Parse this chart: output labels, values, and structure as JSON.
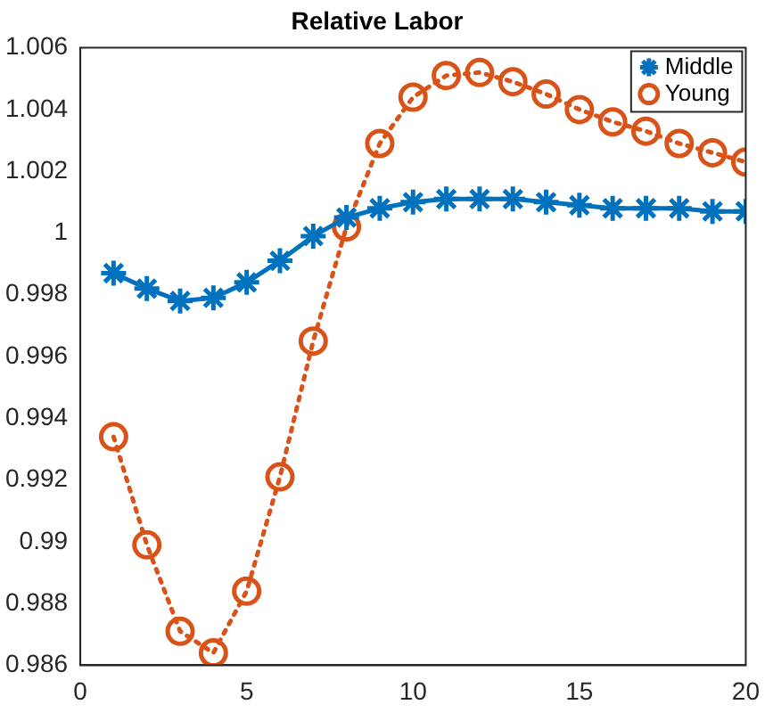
{
  "chart_data": {
    "type": "line",
    "title": "Relative Labor",
    "x": [
      1,
      2,
      3,
      4,
      5,
      6,
      7,
      8,
      9,
      10,
      11,
      12,
      13,
      14,
      15,
      16,
      17,
      18,
      19,
      20
    ],
    "series": [
      {
        "name": "Middle",
        "color": "#0072bd",
        "marker": "cross",
        "line_style": "solid",
        "values": [
          0.9987,
          0.9982,
          0.9978,
          0.9979,
          0.9984,
          0.9991,
          0.9999,
          1.0005,
          1.0008,
          1.001,
          1.0011,
          1.0011,
          1.0011,
          1.001,
          1.0009,
          1.0008,
          1.0008,
          1.0008,
          1.0007,
          1.0007
        ]
      },
      {
        "name": "Young",
        "color": "#d95319",
        "marker": "circle",
        "line_style": "dotted",
        "values": [
          0.9934,
          0.9899,
          0.9871,
          0.9864,
          0.9884,
          0.9921,
          0.9965,
          1.0002,
          1.0029,
          1.0044,
          1.0051,
          1.0052,
          1.0049,
          1.0045,
          1.004,
          1.0036,
          1.0033,
          1.0029,
          1.0026,
          1.0023
        ]
      }
    ],
    "xlim": [
      0,
      20
    ],
    "xticks": [
      0,
      5,
      10,
      15,
      20
    ],
    "ylim": [
      0.986,
      1.006
    ],
    "yticks": [
      0.986,
      0.988,
      0.99,
      0.992,
      0.994,
      0.996,
      0.998,
      1,
      1.002,
      1.004,
      1.006
    ],
    "grid": false,
    "legend": "top right"
  }
}
